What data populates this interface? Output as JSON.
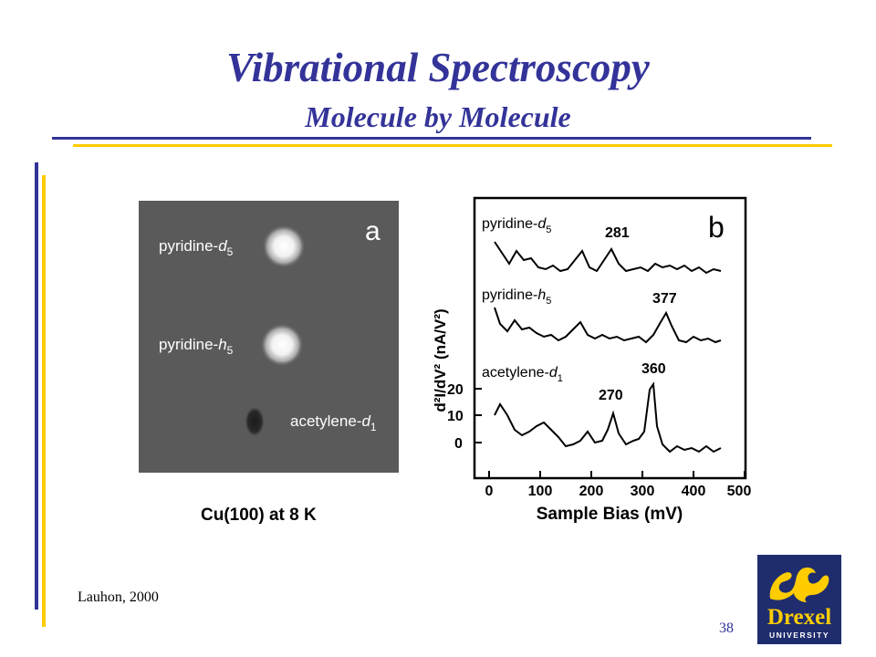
{
  "slide": {
    "title": "Vibrational Spectroscopy",
    "subtitle": "Molecule by Molecule",
    "citation": "Lauhon, 2000",
    "page_number": "38",
    "colors": {
      "title": "#333399",
      "rule_blue": "#333399",
      "rule_gold": "#FFCC00"
    }
  },
  "figure_a": {
    "panel_letter": "a",
    "labels": {
      "pyridine_d5": {
        "base": "pyridine-",
        "italic": "d",
        "sub": "5"
      },
      "pyridine_h5": {
        "base": "pyridine-",
        "italic": "h",
        "sub": "5"
      },
      "acetylene_d1": {
        "base": "acetylene-",
        "italic": "d",
        "sub": "1"
      }
    },
    "caption": "Cu(100) at 8 K"
  },
  "figure_b": {
    "panel_letter": "b",
    "y_axis_label": "d²I/dV² (nA/V²)",
    "x_axis_label": "Sample Bias (mV)",
    "x_ticks": [
      "0",
      "100",
      "200",
      "300",
      "400",
      "500"
    ],
    "y_ticks": [
      "20",
      "10",
      "0"
    ],
    "trace_labels": {
      "pyridine_d5": {
        "base": "pyridine-",
        "italic": "d",
        "sub": "5"
      },
      "pyridine_h5": {
        "base": "pyridine-",
        "italic": "h",
        "sub": "5"
      },
      "acetylene_d1": {
        "base": "acetylene-",
        "italic": "d",
        "sub": "1"
      }
    },
    "peak_labels": [
      "281",
      "377",
      "270",
      "360"
    ]
  },
  "logo": {
    "text": "Drexel",
    "subtext": "UNIVERSITY",
    "colors": {
      "background": "#1f2d6e",
      "gold": "#FFCC00"
    }
  }
}
